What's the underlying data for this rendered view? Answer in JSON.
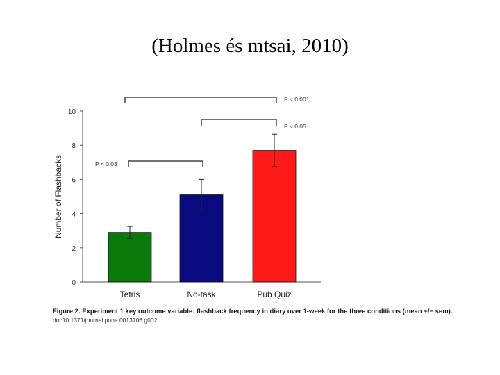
{
  "slide": {
    "title": "(Holmes és mtsai, 2010)"
  },
  "chart_data": {
    "type": "bar",
    "categories": [
      "Tetris",
      "No-task",
      "Pub Quiz"
    ],
    "values": [
      2.9,
      5.1,
      7.7
    ],
    "errors": [
      0.35,
      0.9,
      0.95
    ],
    "colors": [
      "#0a7a0a",
      "#0a0a80",
      "#ff1a1a"
    ],
    "ylabel": "Number of Flashbacks",
    "xlabel": "",
    "ylim": [
      0,
      10
    ],
    "yticks": [
      0,
      2,
      4,
      6,
      8,
      10
    ],
    "grid": false,
    "comparisons": [
      {
        "from": 0,
        "to": 2,
        "label": "P < 0.001"
      },
      {
        "from": 1,
        "to": 2,
        "label": "P < 0.05"
      },
      {
        "from": 0,
        "to": 1,
        "label": "P < 0.03"
      }
    ]
  },
  "caption": {
    "figure": "Figure 2. Experiment 1 key outcome variable: flashback frequency in diary over 1-week for the three conditions (mean +/− sem).",
    "doi": "doi:10.1371/journal.pone.0013706.g002"
  }
}
